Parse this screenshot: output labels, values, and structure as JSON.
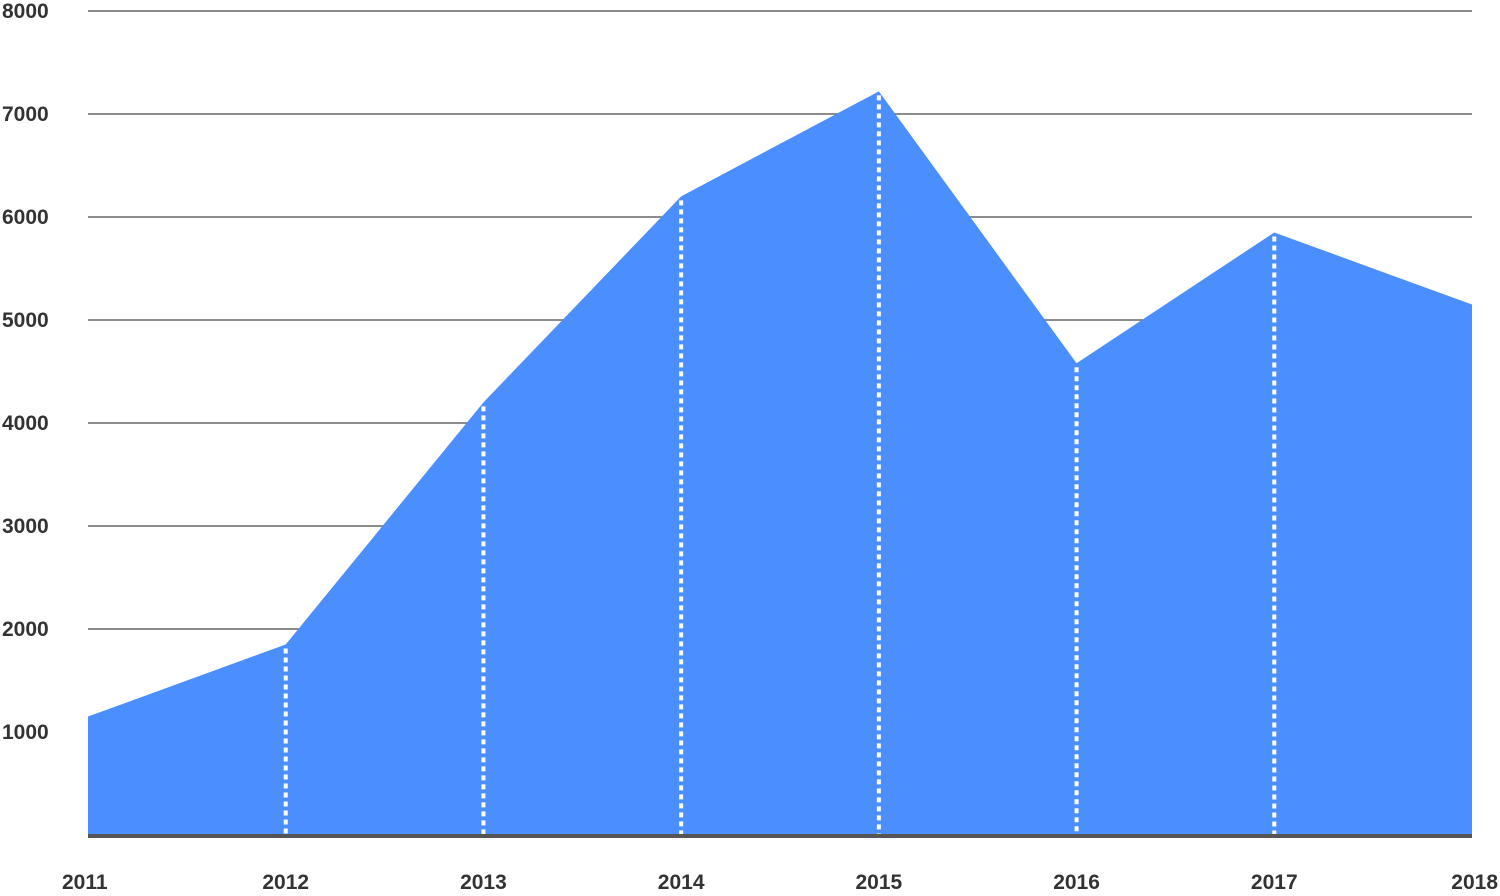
{
  "chart_data": {
    "type": "area",
    "x": [
      "2011",
      "2012",
      "2013",
      "2014",
      "2015",
      "2016",
      "2017",
      "2018"
    ],
    "series": [
      {
        "values": [
          1150,
          1850,
          4200,
          6200,
          7220,
          4580,
          5850,
          5150
        ]
      }
    ],
    "ylim": [
      0,
      8000
    ],
    "yticks": [
      "1000",
      "2000",
      "3000",
      "4000",
      "5000",
      "6000",
      "7000",
      "8000"
    ],
    "grid": true,
    "legend": "none",
    "colors": {
      "area": "#4a8ffd",
      "grid": "#666666",
      "baseline": "#555555",
      "dropline": "#ffffff"
    }
  }
}
